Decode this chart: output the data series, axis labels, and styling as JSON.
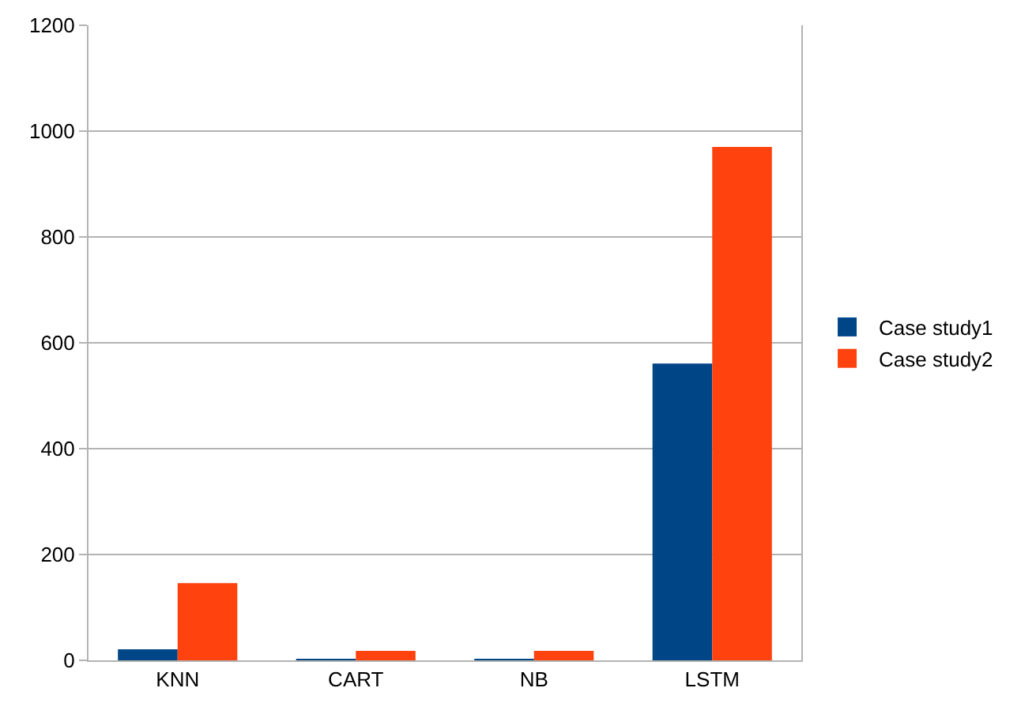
{
  "chart_data": {
    "type": "bar",
    "categories": [
      "KNN",
      "CART",
      "NB",
      "LSTM"
    ],
    "series": [
      {
        "name": "Case study1",
        "color": "#004586",
        "values": [
          21,
          3,
          3,
          561
        ]
      },
      {
        "name": "Case study2",
        "color": "#ff420e",
        "values": [
          146,
          18,
          18,
          970
        ]
      }
    ],
    "ylim": [
      0,
      1200
    ],
    "yticks": [
      0,
      200,
      400,
      600,
      800,
      1000,
      1200
    ],
    "grid": "y",
    "legend": "right"
  }
}
